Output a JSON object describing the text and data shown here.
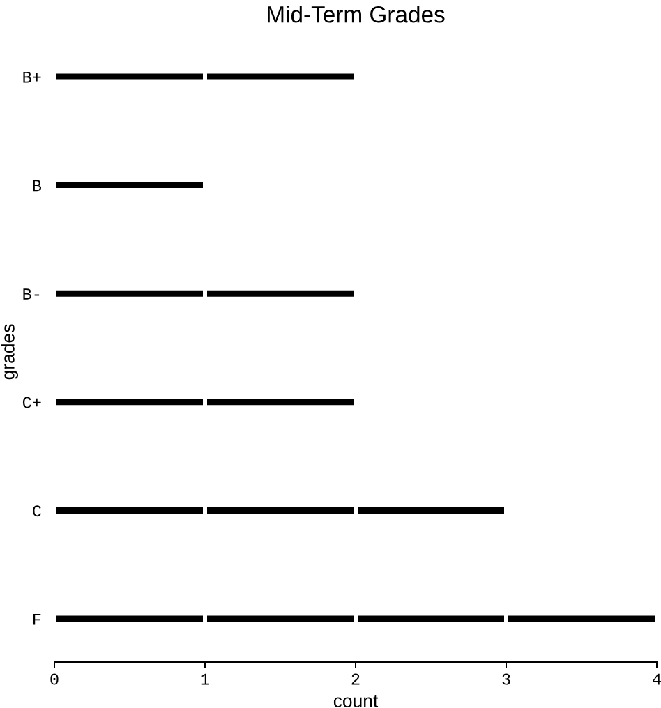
{
  "chart_data": {
    "type": "bar",
    "orientation": "horizontal",
    "stacked": true,
    "title": "Mid-Term Grades",
    "xlabel": "count",
    "ylabel": "grades",
    "categories": [
      "B+",
      "B",
      "B-",
      "C+",
      "C",
      "F"
    ],
    "series": [
      {
        "color": "#000000",
        "values": [
          1,
          1,
          1,
          1,
          1,
          1
        ]
      },
      {
        "color": "#000000",
        "values": [
          1,
          null,
          1,
          1,
          1,
          1
        ]
      },
      {
        "color": "#000000",
        "values": [
          null,
          null,
          null,
          null,
          1,
          1
        ]
      },
      {
        "color": "#000000",
        "values": [
          null,
          null,
          null,
          null,
          null,
          1
        ]
      }
    ],
    "xlim": [
      0,
      4
    ],
    "xticks": [
      0,
      1,
      2,
      3,
      4
    ]
  }
}
